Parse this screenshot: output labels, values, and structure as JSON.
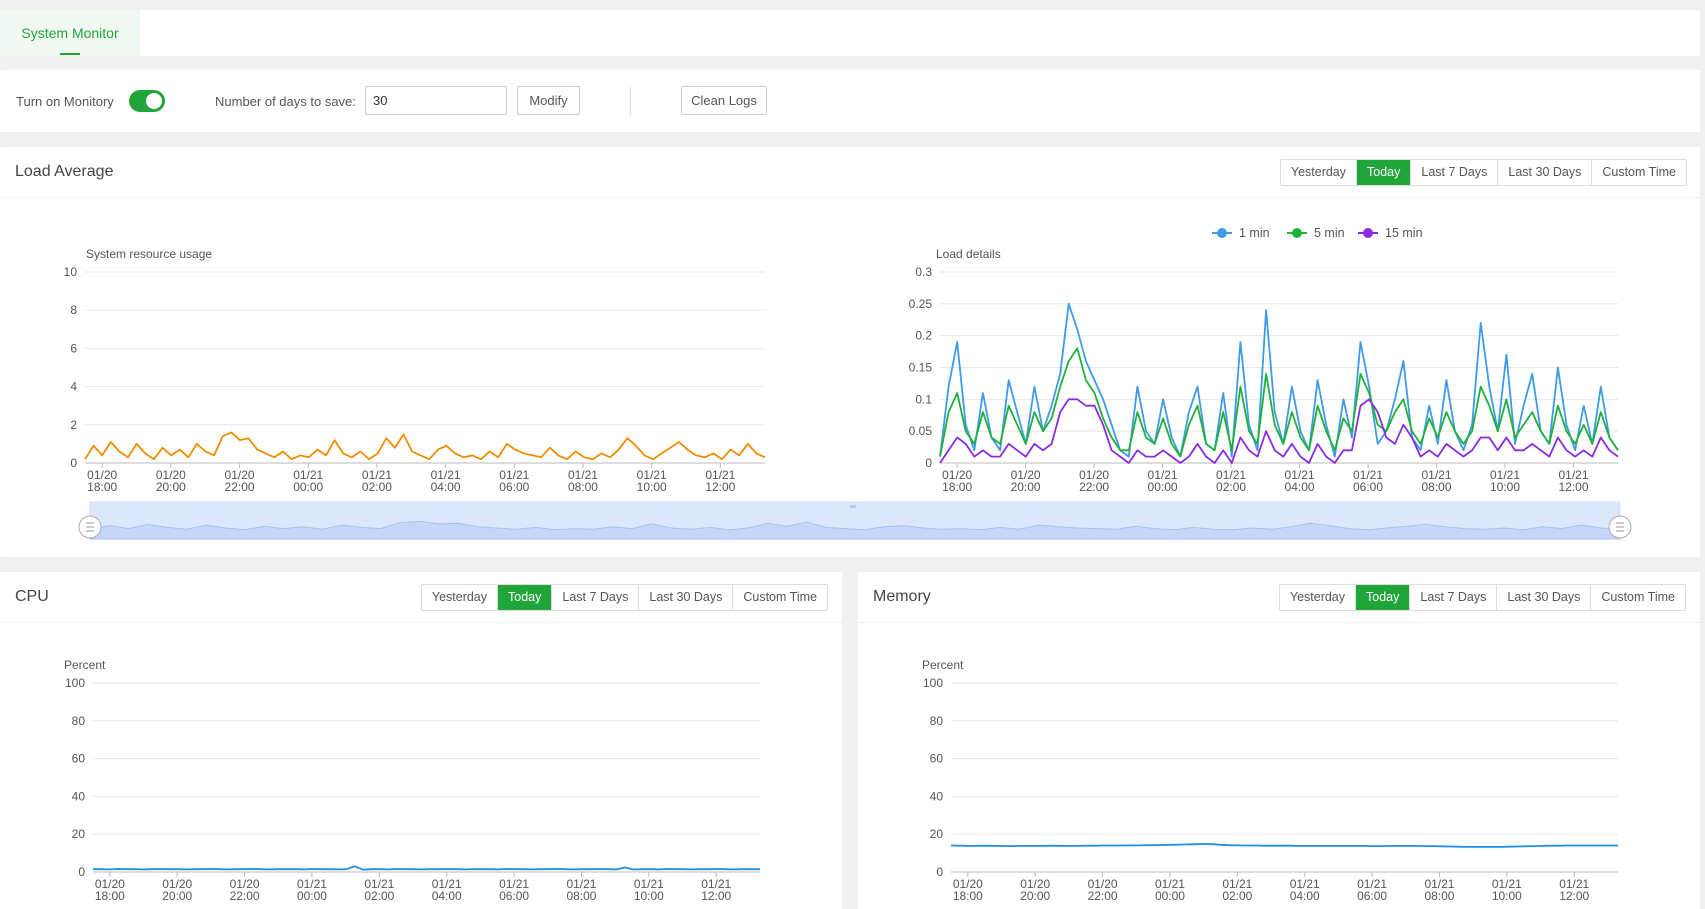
{
  "tabs": [
    {
      "label": "System Monitor",
      "active": true
    }
  ],
  "controls": {
    "monitor_label": "Turn on Monitory",
    "monitor_on": true,
    "days_label": "Number of days to save:",
    "days_value": "30",
    "modify_label": "Modify",
    "clean_label": "Clean Logs"
  },
  "range_options": [
    "Yesterday",
    "Today",
    "Last 7 Days",
    "Last 30 Days",
    "Custom Time"
  ],
  "range_active": "Today",
  "time_ticks": [
    "01/20\n18:00",
    "01/20\n20:00",
    "01/20\n22:00",
    "01/21\n00:00",
    "01/21\n02:00",
    "01/21\n04:00",
    "01/21\n06:00",
    "01/21\n08:00",
    "01/21\n10:00",
    "01/21\n12:00"
  ],
  "panels": {
    "load": {
      "title": "Load Average"
    },
    "cpu": {
      "title": "CPU"
    },
    "memory": {
      "title": "Memory"
    }
  },
  "colors": {
    "accent": "#20a53a",
    "load_line": "#f08c00",
    "one_min": "#3d9be9",
    "five_min": "#20b13a",
    "fifteen_min": "#8a2be2",
    "cpu_line": "#1f8fe0"
  },
  "chart_data": [
    {
      "id": "resource",
      "type": "line",
      "title": "System resource usage",
      "ylim": [
        0,
        10
      ],
      "yticks": [
        0,
        2,
        4,
        6,
        8,
        10
      ],
      "x_range": [
        17.5,
        13.3
      ],
      "x_unit": "hour (01/20 17:30 to 01/21 13:20)",
      "series": [
        {
          "color": "#f08c00",
          "values": [
            0.2,
            0.9,
            0.4,
            1.1,
            0.6,
            0.3,
            1.0,
            0.5,
            0.2,
            0.8,
            0.4,
            0.7,
            0.3,
            1.0,
            0.6,
            0.4,
            1.4,
            1.6,
            1.2,
            1.3,
            0.7,
            0.5,
            0.3,
            0.6,
            0.2,
            0.4,
            0.3,
            0.7,
            0.4,
            1.2,
            0.5,
            0.3,
            0.6,
            0.2,
            0.5,
            1.3,
            0.8,
            1.5,
            0.6,
            0.4,
            0.2,
            0.7,
            0.9,
            0.5,
            0.3,
            0.4,
            0.2,
            0.6,
            0.3,
            1.0,
            0.7,
            0.5,
            0.4,
            0.3,
            0.8,
            0.4,
            0.2,
            0.6,
            0.3,
            0.2,
            0.5,
            0.3,
            0.7,
            1.3,
            0.9,
            0.4,
            0.2,
            0.5,
            0.8,
            1.1,
            0.7,
            0.4,
            0.3,
            0.5,
            0.2,
            0.7,
            0.4,
            1.0,
            0.5,
            0.3
          ]
        }
      ]
    },
    {
      "id": "load_details",
      "type": "line",
      "title": "Load details",
      "ylim": [
        0,
        0.3
      ],
      "yticks": [
        "0",
        "0.05",
        "0.1",
        "0.15",
        "0.2",
        "0.25",
        "0.3"
      ],
      "x_range": [
        17.5,
        13.3
      ],
      "series": [
        {
          "name": "1 min",
          "color": "#3d9be9",
          "values": [
            0.01,
            0.12,
            0.19,
            0.06,
            0.02,
            0.11,
            0.04,
            0.02,
            0.13,
            0.08,
            0.03,
            0.12,
            0.05,
            0.09,
            0.14,
            0.25,
            0.21,
            0.16,
            0.13,
            0.1,
            0.06,
            0.02,
            0.01,
            0.12,
            0.05,
            0.03,
            0.1,
            0.04,
            0.01,
            0.08,
            0.12,
            0.03,
            0.02,
            0.11,
            0.01,
            0.19,
            0.06,
            0.02,
            0.24,
            0.08,
            0.03,
            0.12,
            0.05,
            0.02,
            0.13,
            0.06,
            0.01,
            0.1,
            0.04,
            0.19,
            0.12,
            0.03,
            0.05,
            0.1,
            0.16,
            0.04,
            0.02,
            0.09,
            0.03,
            0.13,
            0.05,
            0.02,
            0.06,
            0.22,
            0.12,
            0.05,
            0.17,
            0.03,
            0.09,
            0.14,
            0.05,
            0.03,
            0.15,
            0.06,
            0.02,
            0.09,
            0.03,
            0.12,
            0.04,
            0.02
          ]
        },
        {
          "name": "5 min",
          "color": "#20b13a",
          "values": [
            0.01,
            0.08,
            0.11,
            0.05,
            0.03,
            0.08,
            0.04,
            0.03,
            0.09,
            0.06,
            0.03,
            0.08,
            0.05,
            0.07,
            0.12,
            0.16,
            0.18,
            0.13,
            0.11,
            0.07,
            0.04,
            0.02,
            0.02,
            0.08,
            0.04,
            0.03,
            0.07,
            0.03,
            0.01,
            0.06,
            0.09,
            0.03,
            0.02,
            0.08,
            0.02,
            0.12,
            0.05,
            0.03,
            0.14,
            0.06,
            0.03,
            0.08,
            0.04,
            0.02,
            0.09,
            0.05,
            0.02,
            0.07,
            0.05,
            0.14,
            0.11,
            0.06,
            0.05,
            0.08,
            0.1,
            0.05,
            0.03,
            0.07,
            0.04,
            0.08,
            0.05,
            0.03,
            0.05,
            0.12,
            0.09,
            0.05,
            0.1,
            0.04,
            0.06,
            0.08,
            0.05,
            0.03,
            0.09,
            0.05,
            0.03,
            0.06,
            0.03,
            0.08,
            0.04,
            0.02
          ]
        },
        {
          "name": "15 min",
          "color": "#8a2be2",
          "values": [
            0.0,
            0.02,
            0.04,
            0.03,
            0.01,
            0.02,
            0.01,
            0.01,
            0.03,
            0.02,
            0.01,
            0.03,
            0.02,
            0.03,
            0.08,
            0.1,
            0.1,
            0.09,
            0.09,
            0.06,
            0.02,
            0.01,
            0.0,
            0.02,
            0.01,
            0.01,
            0.02,
            0.01,
            0.0,
            0.01,
            0.03,
            0.01,
            0.0,
            0.02,
            0.0,
            0.04,
            0.02,
            0.01,
            0.05,
            0.02,
            0.01,
            0.03,
            0.01,
            0.0,
            0.03,
            0.01,
            0.0,
            0.02,
            0.02,
            0.09,
            0.1,
            0.08,
            0.04,
            0.03,
            0.06,
            0.04,
            0.01,
            0.02,
            0.01,
            0.03,
            0.02,
            0.01,
            0.02,
            0.04,
            0.04,
            0.02,
            0.04,
            0.02,
            0.02,
            0.03,
            0.02,
            0.01,
            0.04,
            0.02,
            0.01,
            0.02,
            0.01,
            0.04,
            0.02,
            0.01
          ]
        }
      ]
    },
    {
      "id": "cpu",
      "type": "line",
      "title": "Percent",
      "ylim": [
        0,
        100
      ],
      "yticks": [
        0,
        20,
        40,
        60,
        80,
        100
      ],
      "x_range": [
        17.5,
        13.3
      ],
      "series": [
        {
          "color": "#1f8fe0",
          "values": [
            1.5,
            1.5,
            1.4,
            1.6,
            1.5,
            1.5,
            1.4,
            1.5,
            1.6,
            1.5,
            1.5,
            1.4,
            1.5,
            1.5,
            1.6,
            1.5,
            1.4,
            1.5,
            1.5,
            1.6,
            1.5,
            1.4,
            1.5,
            1.5,
            1.5,
            1.4,
            1.6,
            1.5,
            1.5,
            1.4,
            1.5,
            3.0,
            1.2,
            1.5,
            1.5,
            1.4,
            1.6,
            1.5,
            1.5,
            1.4,
            1.5,
            1.5,
            1.6,
            1.5,
            1.4,
            1.5,
            1.5,
            1.5,
            1.4,
            1.6,
            1.5,
            1.5,
            1.4,
            1.5,
            1.5,
            1.6,
            1.5,
            1.4,
            1.5,
            1.5,
            1.6,
            1.5,
            1.4,
            2.4,
            1.3,
            1.5,
            1.5,
            1.4,
            1.6,
            1.5,
            1.5,
            1.4,
            1.5,
            1.5,
            1.6,
            1.5,
            1.4,
            1.5,
            1.5,
            1.5
          ]
        }
      ]
    },
    {
      "id": "memory",
      "type": "line",
      "title": "Percent",
      "ylim": [
        0,
        100
      ],
      "yticks": [
        0,
        20,
        40,
        60,
        80,
        100
      ],
      "x_range": [
        17.5,
        13.3
      ],
      "series": [
        {
          "color": "#1f8fe0",
          "values": [
            14.0,
            13.9,
            13.8,
            13.8,
            13.9,
            13.8,
            13.8,
            13.7,
            13.8,
            13.8,
            13.8,
            13.8,
            13.9,
            13.8,
            13.8,
            13.8,
            13.9,
            13.9,
            14.0,
            14.0,
            14.0,
            14.1,
            14.1,
            14.2,
            14.2,
            14.3,
            14.4,
            14.5,
            14.6,
            14.7,
            14.8,
            14.7,
            14.4,
            14.2,
            14.1,
            14.0,
            14.0,
            13.9,
            13.9,
            13.9,
            13.9,
            13.8,
            13.8,
            13.8,
            13.8,
            13.8,
            13.8,
            13.8,
            13.8,
            13.8,
            13.7,
            13.7,
            13.8,
            13.8,
            13.8,
            13.8,
            13.7,
            13.7,
            13.6,
            13.5,
            13.4,
            13.3,
            13.3,
            13.3,
            13.3,
            13.3,
            13.4,
            13.5,
            13.6,
            13.7,
            13.8,
            13.9,
            13.9,
            14.0,
            14.0,
            14.0,
            14.0,
            14.0,
            14.0,
            14.0
          ]
        }
      ]
    }
  ]
}
